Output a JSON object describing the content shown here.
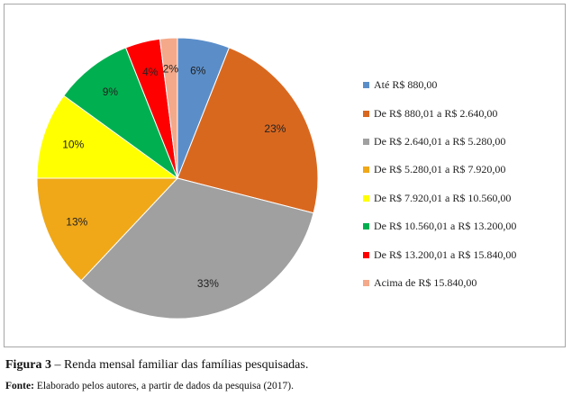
{
  "chart_data": {
    "type": "pie",
    "title": "",
    "categories": [
      "Até R$ 880,00",
      "De R$ 880,01 a R$ 2.640,00",
      "De R$ 2.640,01 a R$ 5.280,00",
      "De R$ 5.280,01 a R$ 7.920,00",
      "De R$ 7.920,01 a R$ 10.560,00",
      "De R$ 10.560,01 a R$ 13.200,00",
      "De R$ 13.200,01 a R$ 15.840,00",
      "Acima de R$ 15.840,00"
    ],
    "values": [
      6,
      23,
      33,
      13,
      10,
      9,
      4,
      2
    ],
    "labels": [
      "6%",
      "23%",
      "33%",
      "13%",
      "10%",
      "9%",
      "4%",
      "2%"
    ],
    "colors": [
      "#5b8ec9",
      "#d9681f",
      "#a0a0a0",
      "#f0a818",
      "#ffff00",
      "#00b050",
      "#ff0000",
      "#f4a98a"
    ],
    "legend_position": "right"
  },
  "caption": {
    "label": "Figura 3",
    "text": " – Renda mensal familiar das famílias pesquisadas."
  },
  "source": {
    "label": "Fonte:",
    "text": " Elaborado pelos autores, a partir de dados da pesquisa (2017)."
  }
}
